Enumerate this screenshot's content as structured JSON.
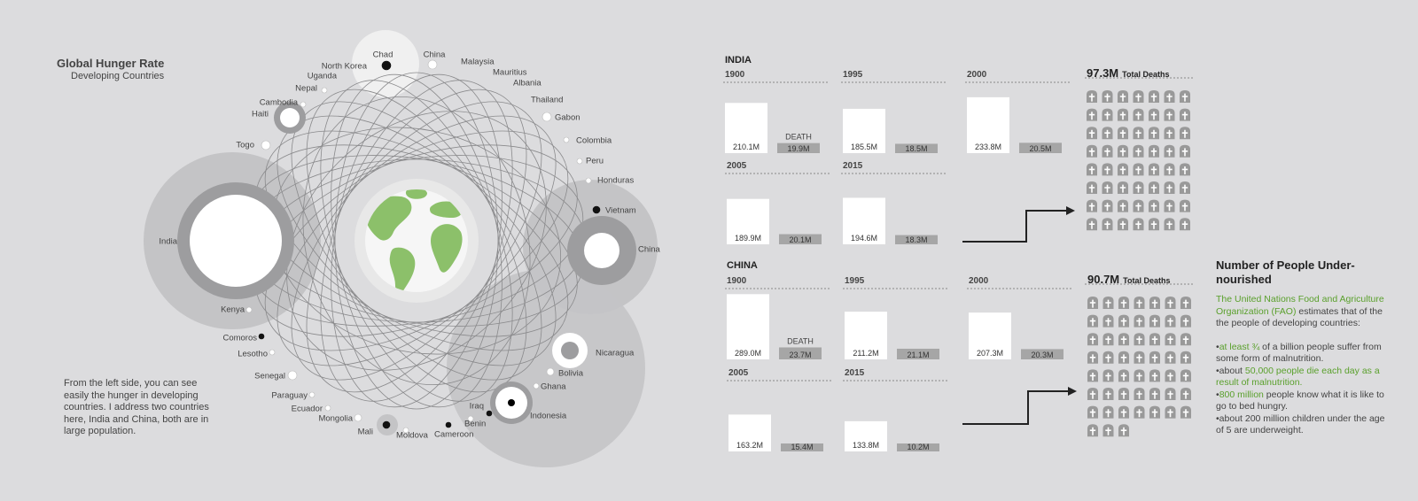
{
  "header": {
    "title": "Global Hunger Rate",
    "subtitle": "Developing Countries"
  },
  "note": "From the left side, you can see easily the hunger in developing countries. I address two countries here, India and China, both are in large population.",
  "countries": [
    {
      "name": "Chad",
      "marker": "black"
    },
    {
      "name": "China",
      "marker": "white"
    },
    {
      "name": "Malaysia",
      "marker": "white"
    },
    {
      "name": "North Korea",
      "marker": "none"
    },
    {
      "name": "Uganda",
      "marker": "none"
    },
    {
      "name": "Mauritius",
      "marker": "none"
    },
    {
      "name": "Albania",
      "marker": "none"
    },
    {
      "name": "Nepal",
      "marker": "white"
    },
    {
      "name": "Thailand",
      "marker": "none"
    },
    {
      "name": "Cambodia",
      "marker": "white"
    },
    {
      "name": "Gabon",
      "marker": "white"
    },
    {
      "name": "Haiti",
      "marker": "ring"
    },
    {
      "name": "Colombia",
      "marker": "white"
    },
    {
      "name": "Togo",
      "marker": "white"
    },
    {
      "name": "Peru",
      "marker": "white"
    },
    {
      "name": "Honduras",
      "marker": "white"
    },
    {
      "name": "Vietnam",
      "marker": "black"
    },
    {
      "name": "India",
      "marker": "big"
    },
    {
      "name": "China",
      "marker": "big"
    },
    {
      "name": "Kenya",
      "marker": "white"
    },
    {
      "name": "Comoros",
      "marker": "black"
    },
    {
      "name": "Nicaragua",
      "marker": "ring"
    },
    {
      "name": "Lesotho",
      "marker": "white"
    },
    {
      "name": "Bolivia",
      "marker": "white"
    },
    {
      "name": "Senegal",
      "marker": "white"
    },
    {
      "name": "Ghana",
      "marker": "white"
    },
    {
      "name": "Paraguay",
      "marker": "white"
    },
    {
      "name": "Iraq",
      "marker": "black"
    },
    {
      "name": "Ecuador",
      "marker": "white"
    },
    {
      "name": "Indonesia",
      "marker": "ring"
    },
    {
      "name": "Benin",
      "marker": "white"
    },
    {
      "name": "Mongolia",
      "marker": "white"
    },
    {
      "name": "Mali",
      "marker": "black"
    },
    {
      "name": "Moldova",
      "marker": "white"
    },
    {
      "name": "Cameroon",
      "marker": "black"
    }
  ],
  "india": {
    "label": "INDIA",
    "death_label": "DEATH",
    "rows": [
      [
        {
          "year": "1900",
          "pop": 210.1,
          "pop_label": "210.1M",
          "death": 19.9,
          "death_label": "19.9M"
        },
        {
          "year": "1995",
          "pop": 185.5,
          "pop_label": "185.5M",
          "death": 18.5,
          "death_label": "18.5M"
        },
        {
          "year": "2000",
          "pop": 233.8,
          "pop_label": "233.8M",
          "death": 20.5,
          "death_label": "20.5M"
        }
      ],
      [
        {
          "year": "2005",
          "pop": 189.9,
          "pop_label": "189.9M",
          "death": 20.1,
          "death_label": "20.1M"
        },
        {
          "year": "2015",
          "pop": 194.6,
          "pop_label": "194.6M",
          "death": 18.3,
          "death_label": "18.3M"
        }
      ]
    ],
    "total_value": "97.3M",
    "total_label": "Total Deaths",
    "grave_count": 56
  },
  "china": {
    "label": "CHINA",
    "death_label": "DEATH",
    "rows": [
      [
        {
          "year": "1900",
          "pop": 289.0,
          "pop_label": "289.0M",
          "death": 23.7,
          "death_label": "23.7M"
        },
        {
          "year": "1995",
          "pop": 211.2,
          "pop_label": "211.2M",
          "death": 21.1,
          "death_label": "21.1M"
        },
        {
          "year": "2000",
          "pop": 207.3,
          "pop_label": "207.3M",
          "death": 20.3,
          "death_label": "20.3M"
        }
      ],
      [
        {
          "year": "2005",
          "pop": 163.2,
          "pop_label": "163.2M",
          "death": 15.4,
          "death_label": "15.4M"
        },
        {
          "year": "2015",
          "pop": 133.8,
          "pop_label": "133.8M",
          "death": 10.2,
          "death_label": "10.2M"
        }
      ]
    ],
    "total_value": "90.7M",
    "total_label": "Total Deaths",
    "grave_count": 52
  },
  "info": {
    "title": "Number of People Under-nourished",
    "intro_green": "The United Nations Food and Agriculture Organization (FAO)",
    "intro_rest": "estimates that of the the people of developing countries:",
    "b1_pre": "•",
    "b1_green": "at least ¾",
    "b1_rest": " of a billion people suffer from some form of malnutrition.",
    "b2_pre": "•about ",
    "b2_green": "50,000 people die each day as a result of malnutrition.",
    "b3_pre": "•",
    "b3_green": "800 million",
    "b3_rest": " people know what it is like to go to bed hungry.",
    "b4": "•about 200 million children under the age of 5 are underweight."
  },
  "colors": {
    "background": "#dcdcde",
    "accent_green": "#5aa02c",
    "bar_gray": "#a6a6a6",
    "grave_gray": "#999999"
  }
}
